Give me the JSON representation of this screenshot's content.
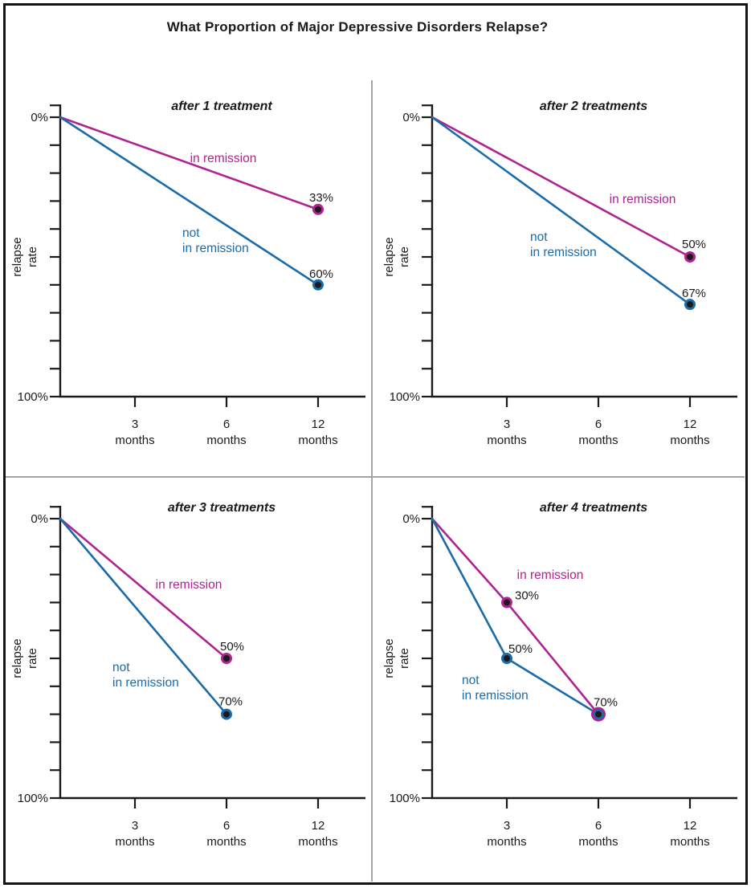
{
  "page": {
    "title": "What Proportion of Major Depressive Disorders Relapse?"
  },
  "axes": {
    "y_axis_title_lines": [
      "relapse",
      "rate"
    ],
    "y_top_label": "0%",
    "y_bottom_label": "100%",
    "x_ticks": [
      {
        "value": "3",
        "unit": "months"
      },
      {
        "value": "6",
        "unit": "months"
      },
      {
        "value": "12",
        "unit": "months"
      }
    ]
  },
  "colors": {
    "remission": "#ae2390",
    "not_remission": "#1b6ba8",
    "axis": "#1a1a1a",
    "point_core": "#1a1a1a",
    "divider": "#a3a3a3"
  },
  "chart_data": [
    {
      "type": "line",
      "title": "after 1 treatment",
      "xlabel": "months",
      "ylabel": "relapse rate",
      "y_axis": {
        "top": "0%",
        "bottom": "100%",
        "inverted": true,
        "tick_step_pct": 10
      },
      "x_categories_months": [
        3,
        6,
        12
      ],
      "series": [
        {
          "name": "in remission",
          "color": "#ae2390",
          "name_pos": {
            "x": 268,
            "y": 112,
            "anchor": "middle"
          },
          "points": [
            {
              "t": 0,
              "v": 0
            },
            {
              "t": 12,
              "v": 33,
              "label": "33%",
              "label_anchor": "middle",
              "label_dx": 4,
              "label_dy": -10
            }
          ]
        },
        {
          "name": "not\nin remission",
          "color": "#1b6ba8",
          "name_pos": {
            "x": 217,
            "y": 205,
            "anchor": "start"
          },
          "points": [
            {
              "t": 0,
              "v": 0
            },
            {
              "t": 12,
              "v": 60,
              "label": "60%",
              "label_anchor": "middle",
              "label_dx": 4,
              "label_dy": -9
            }
          ]
        }
      ]
    },
    {
      "type": "line",
      "title": "after 2 treatments",
      "xlabel": "months",
      "ylabel": "relapse rate",
      "y_axis": {
        "top": "0%",
        "bottom": "100%",
        "inverted": true,
        "tick_step_pct": 10
      },
      "x_categories_months": [
        3,
        6,
        12
      ],
      "series": [
        {
          "name": "in remission",
          "color": "#ae2390",
          "name_pos": {
            "x": 327,
            "y": 163,
            "anchor": "middle"
          },
          "points": [
            {
              "t": 0,
              "v": 0
            },
            {
              "t": 12,
              "v": 50,
              "label": "50%",
              "label_anchor": "middle",
              "label_dx": 5,
              "label_dy": -11
            }
          ]
        },
        {
          "name": "not\nin remission",
          "color": "#1b6ba8",
          "name_pos": {
            "x": 187,
            "y": 210,
            "anchor": "start"
          },
          "points": [
            {
              "t": 0,
              "v": 0
            },
            {
              "t": 12,
              "v": 67,
              "label": "67%",
              "label_anchor": "middle",
              "label_dx": 5,
              "label_dy": -9
            }
          ]
        }
      ]
    },
    {
      "type": "line",
      "title": "after 3 treatments",
      "xlabel": "months",
      "ylabel": "relapse rate",
      "y_axis": {
        "top": "0%",
        "bottom": "100%",
        "inverted": true,
        "tick_step_pct": 10
      },
      "x_categories_months": [
        3,
        6,
        12
      ],
      "series": [
        {
          "name": "in remission",
          "color": "#ae2390",
          "name_pos": {
            "x": 225,
            "y": 143,
            "anchor": "middle"
          },
          "points": [
            {
              "t": 0,
              "v": 0
            },
            {
              "t": 6,
              "v": 50,
              "label": "50%",
              "label_anchor": "middle",
              "label_dx": 7,
              "label_dy": -10
            }
          ]
        },
        {
          "name": "not\nin remission",
          "color": "#1b6ba8",
          "name_pos": {
            "x": 130,
            "y": 246,
            "anchor": "start"
          },
          "points": [
            {
              "t": 0,
              "v": 0
            },
            {
              "t": 6,
              "v": 70,
              "label": "70%",
              "label_anchor": "middle",
              "label_dx": 5,
              "label_dy": -11
            }
          ]
        }
      ]
    },
    {
      "type": "line",
      "title": "after 4 treatments",
      "xlabel": "months",
      "ylabel": "relapse rate",
      "y_axis": {
        "top": "0%",
        "bottom": "100%",
        "inverted": true,
        "tick_step_pct": 10
      },
      "x_categories_months": [
        3,
        6,
        12
      ],
      "series": [
        {
          "name": "in remission",
          "color": "#ae2390",
          "name_pos": {
            "x": 212,
            "y": 131,
            "anchor": "middle"
          },
          "points": [
            {
              "t": 0,
              "v": 0
            },
            {
              "t": 3,
              "v": 30,
              "label": "30%",
              "label_anchor": "start",
              "label_dx": 10,
              "label_dy": -4
            },
            {
              "t": 6,
              "v": 70,
              "r": 9
            }
          ]
        },
        {
          "name": "not\nin remission",
          "color": "#1b6ba8",
          "name_pos": {
            "x": 102,
            "y": 262,
            "anchor": "start"
          },
          "points": [
            {
              "t": 0,
              "v": 0
            },
            {
              "t": 3,
              "v": 50,
              "label": "50%",
              "label_anchor": "start",
              "label_dx": 2,
              "label_dy": -7
            },
            {
              "t": 6,
              "v": 70,
              "r": 6.5,
              "label": "70%",
              "label_anchor": "middle",
              "label_dx": 9,
              "label_dy": -10
            }
          ]
        }
      ]
    }
  ]
}
